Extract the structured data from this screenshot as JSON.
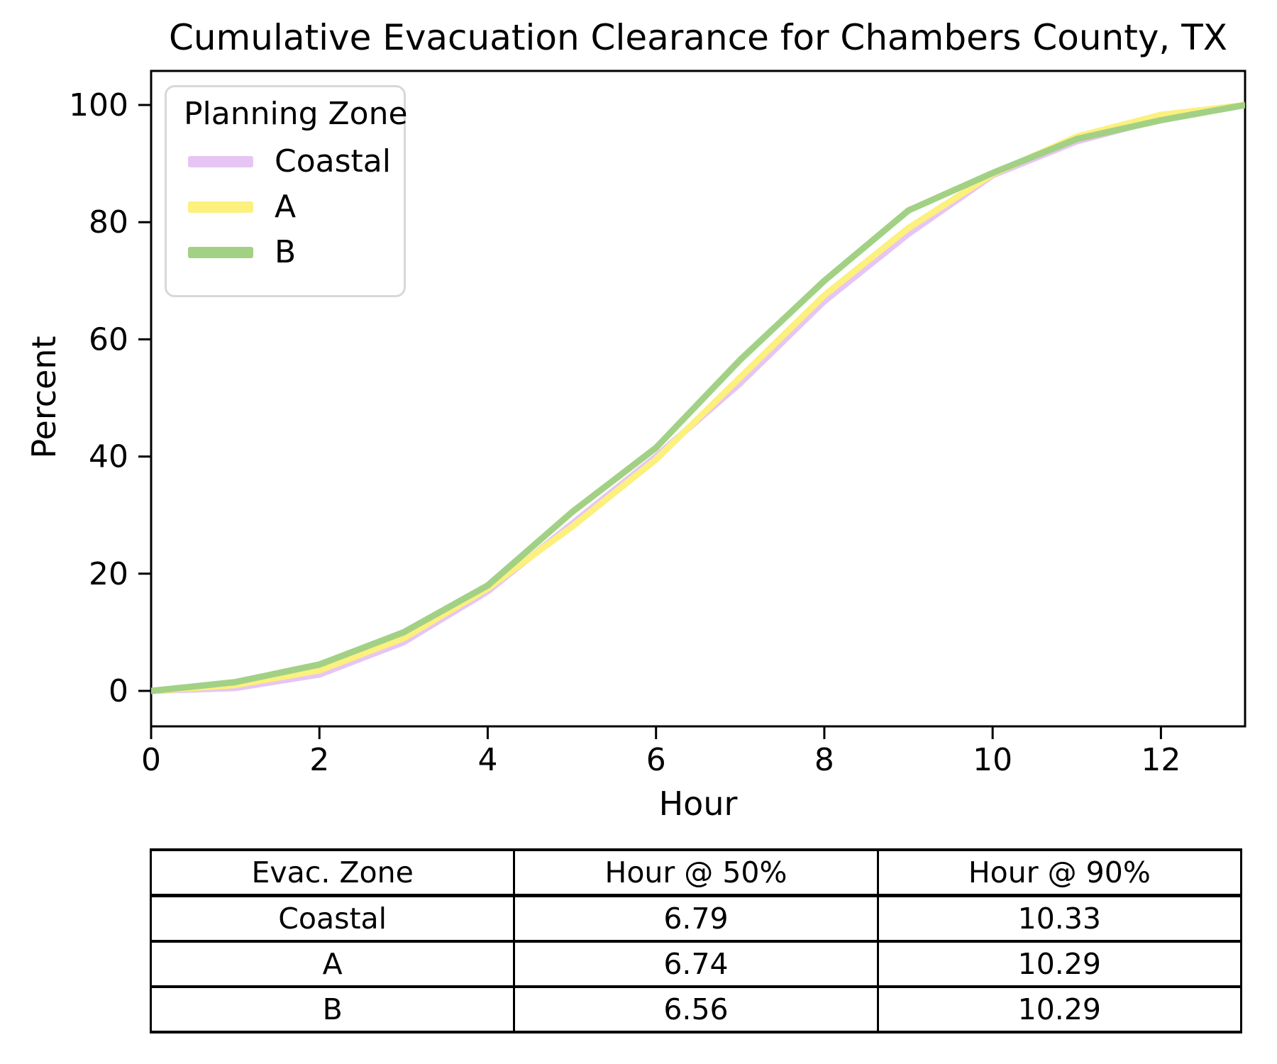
{
  "page": {
    "title": "Cumulative Evacuation Clearance for Chambers County, TX"
  },
  "chart_data": {
    "type": "line",
    "title": "Cumulative Evacuation Clearance for Chambers County, TX",
    "xlabel": "Hour",
    "ylabel": "Percent",
    "xlim": [
      0,
      13
    ],
    "ylim": [
      0,
      100
    ],
    "x_ticks": [
      0,
      2,
      4,
      6,
      8,
      10,
      12
    ],
    "y_ticks": [
      0,
      20,
      40,
      60,
      80,
      100
    ],
    "grid": false,
    "legend": {
      "title": "Planning Zone",
      "position": "upper left"
    },
    "x": [
      0,
      1,
      2,
      3,
      4,
      5,
      6,
      7,
      8,
      9,
      10,
      11,
      12,
      13
    ],
    "series": [
      {
        "name": "Coastal",
        "color": "#e6c5f5",
        "values": [
          0,
          0.5,
          2.8,
          8.3,
          17,
          28.5,
          40,
          52.5,
          66.5,
          78,
          88,
          93.8,
          97.6,
          100
        ]
      },
      {
        "name": "A",
        "color": "#fcf07e",
        "values": [
          0,
          1,
          3.5,
          9,
          17.5,
          28,
          39.5,
          53.5,
          67.5,
          79,
          88.2,
          94.6,
          98.3,
          100
        ]
      },
      {
        "name": "B",
        "color": "#a2d185",
        "values": [
          0,
          1.5,
          4.5,
          10,
          18,
          30.5,
          41.5,
          56.5,
          70,
          82,
          88.4,
          94.2,
          97.4,
          100
        ]
      }
    ]
  },
  "table": {
    "headers": [
      "Evac. Zone",
      "Hour @ 50%",
      "Hour @ 90%"
    ],
    "rows": [
      [
        "Coastal",
        "6.79",
        "10.33"
      ],
      [
        "A",
        "6.74",
        "10.29"
      ],
      [
        "B",
        "6.56",
        "10.29"
      ]
    ]
  }
}
